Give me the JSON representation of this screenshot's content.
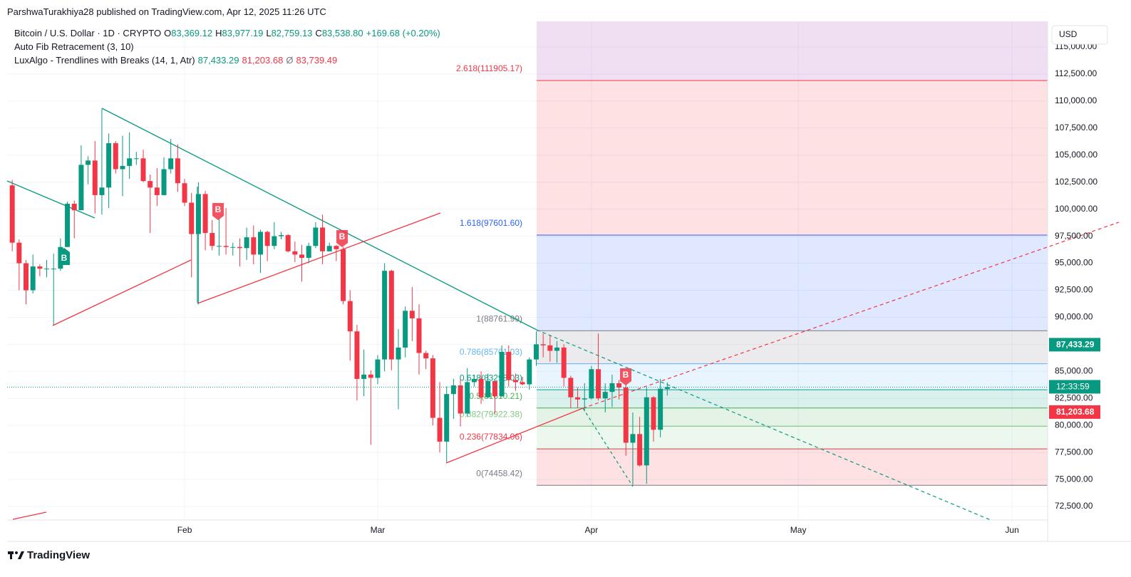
{
  "header": {
    "published": "ParshwaTurakhiya28 published on TradingView.com, Apr 12, 2025 11:26 UTC",
    "brand": "TradingView"
  },
  "legend": {
    "symbol": "Bitcoin / U.S. Dollar · 1D · CRYPTO",
    "ohlc": [
      {
        "key": "O",
        "value": "83,369.12"
      },
      {
        "key": "H",
        "value": "83,977.19"
      },
      {
        "key": "L",
        "value": "82,759.13"
      },
      {
        "key": "C",
        "value": "83,538.80"
      }
    ],
    "change": "+169.68 (+0.20%)"
  },
  "indicators": [
    {
      "name": "Auto Fib Retracement (3, 10)"
    },
    {
      "name": "LuxAlgo - Trendlines with Breaks (14, 1, Atr)",
      "values": [
        {
          "text": "87,433.29",
          "color": "#089981"
        },
        {
          "text": "81,203.68",
          "color": "#f23645"
        },
        {
          "text": "Ø",
          "color": "#787b86"
        },
        {
          "text": "83,739.49",
          "color": "#f23645"
        }
      ]
    }
  ],
  "breaks": [
    "B",
    "B",
    "B",
    "B"
  ],
  "currency": "USD",
  "chart_data": {
    "type": "candlestick",
    "up_color": "#089981",
    "down_color": "#f23645",
    "grid": true,
    "x": [
      7,
      8,
      9,
      10,
      11,
      12,
      13,
      14,
      15,
      16,
      17,
      18,
      19,
      20,
      21,
      22,
      23,
      24,
      25,
      26,
      27,
      28,
      29,
      30,
      31,
      32,
      33,
      34,
      35,
      36,
      37,
      38,
      39,
      40,
      41,
      42,
      43,
      44,
      45,
      46,
      47,
      48,
      49,
      50,
      51,
      52,
      53,
      54,
      55,
      56,
      57,
      58,
      59,
      60,
      61,
      62,
      63,
      64,
      65,
      66,
      67,
      68,
      69,
      70,
      71,
      72,
      73,
      74,
      75,
      76,
      77,
      78,
      79,
      80,
      81,
      82,
      83,
      84,
      85,
      86,
      87,
      88,
      89,
      90,
      91,
      92,
      93,
      94,
      95,
      96,
      97,
      98,
      99,
      100,
      101,
      102
    ],
    "open": [
      102200,
      96900,
      95000,
      92500,
      94700,
      94500,
      94500,
      94500,
      96500,
      100500,
      99900,
      104100,
      104500,
      101300,
      102000,
      106100,
      103700,
      104000,
      104700,
      104700,
      102600,
      102000,
      101300,
      103700,
      104700,
      102400,
      100600,
      97700,
      101400,
      97800,
      96600,
      96600,
      96500,
      96500,
      96400,
      97400,
      95800,
      97900,
      96600,
      97500,
      97600,
      96100,
      95800,
      95500,
      96600,
      98300,
      96100,
      96600,
      96300,
      91500,
      88700,
      84300,
      84700,
      84400,
      86100,
      94300,
      86100,
      87200,
      90600,
      89900,
      86700,
      86200,
      80700,
      78500,
      82900,
      83700,
      81100,
      84000,
      84300,
      82600,
      84100,
      82700,
      86800,
      84200,
      84000,
      83800,
      86100,
      87500,
      87400,
      86900,
      87200,
      84400,
      82600,
      82400,
      82500,
      85200,
      82500,
      83100,
      83900,
      83500,
      78400,
      79200,
      76300,
      82600,
      79600,
      83369.12
    ],
    "high": [
      102700,
      97200,
      95300,
      95800,
      94900,
      95300,
      95900,
      97300,
      100700,
      100800,
      105900,
      104900,
      106300,
      109300,
      107000,
      106300,
      106800,
      107100,
      105300,
      105500,
      103200,
      103800,
      104800,
      106500,
      106000,
      102800,
      101500,
      102500,
      101700,
      99000,
      99200,
      100100,
      96900,
      97300,
      98300,
      98500,
      98100,
      98000,
      98800,
      97900,
      97700,
      97000,
      96700,
      96900,
      98800,
      99500,
      96900,
      96700,
      96500,
      92500,
      89300,
      87000,
      85100,
      86500,
      95000,
      94400,
      88900,
      91000,
      92800,
      91200,
      86900,
      86500,
      84000,
      83600,
      84300,
      84300,
      85300,
      84700,
      85000,
      84800,
      84100,
      87400,
      87400,
      84800,
      84500,
      86300,
      88700,
      88500,
      88300,
      87800,
      87500,
      84600,
      83500,
      83900,
      85500,
      88500,
      83900,
      84700,
      84200,
      83800,
      81200,
      80800,
      83500,
      82700,
      84300,
      83977.19
    ],
    "low": [
      96100,
      92500,
      91200,
      92200,
      93800,
      93700,
      89300,
      94300,
      96500,
      97300,
      99900,
      102300,
      99600,
      99500,
      100100,
      103300,
      101200,
      102800,
      104100,
      102500,
      97800,
      100300,
      101300,
      103300,
      101600,
      100300,
      93700,
      91200,
      96200,
      96200,
      95700,
      95800,
      95700,
      94700,
      95300,
      94900,
      94100,
      95200,
      96300,
      97200,
      96000,
      95100,
      93300,
      95000,
      96400,
      94900,
      96100,
      95200,
      91200,
      86000,
      82300,
      82700,
      78200,
      83800,
      85000,
      85100,
      81500,
      86300,
      87800,
      84700,
      85200,
      80000,
      77500,
      76600,
      80600,
      79900,
      80800,
      83600,
      82000,
      82500,
      81100,
      82600,
      83600,
      83200,
      83700,
      83300,
      85500,
      86300,
      85900,
      85800,
      83600,
      81600,
      81600,
      81300,
      82400,
      82300,
      81200,
      81700,
      82400,
      77200,
      74500,
      76200,
      74600,
      78500,
      78900,
      82759.13
    ],
    "close": [
      96900,
      95000,
      92500,
      94700,
      94500,
      94500,
      94500,
      96500,
      100500,
      99900,
      104100,
      104500,
      101300,
      102000,
      106100,
      103700,
      104000,
      104700,
      104700,
      102600,
      102000,
      101300,
      103700,
      104700,
      102400,
      100600,
      97700,
      101400,
      97800,
      96600,
      96600,
      96500,
      96500,
      96400,
      97400,
      95800,
      97900,
      96600,
      97500,
      97600,
      96100,
      95800,
      95500,
      96600,
      98300,
      96100,
      96600,
      96300,
      91500,
      88700,
      84300,
      84700,
      84400,
      86100,
      94300,
      86100,
      87200,
      90600,
      89900,
      86700,
      86200,
      80700,
      78500,
      82900,
      83700,
      81100,
      84000,
      84300,
      82600,
      84100,
      82700,
      86800,
      84200,
      84000,
      83800,
      86100,
      87500,
      87400,
      86900,
      87200,
      84400,
      82600,
      82400,
      82500,
      85200,
      82500,
      83100,
      83900,
      83500,
      78400,
      79200,
      76300,
      82600,
      79600,
      83400,
      83538.8
    ],
    "xlim": [
      6.26,
      157.16
    ],
    "xticks": [
      {
        "value": 32,
        "label": "Feb"
      },
      {
        "value": 60,
        "label": "Mar"
      },
      {
        "value": 91,
        "label": "Apr"
      },
      {
        "value": 121,
        "label": "May"
      },
      {
        "value": 152,
        "label": "Jun"
      }
    ],
    "ylim": [
      71250,
      117370
    ],
    "yticks": [
      {
        "value": 72500,
        "label": "72,500.00"
      },
      {
        "value": 75000,
        "label": "75,000.00"
      },
      {
        "value": 77500,
        "label": "77,500.00"
      },
      {
        "value": 80000,
        "label": "80,000.00"
      },
      {
        "value": 82500,
        "label": "82,500.00"
      },
      {
        "value": 85000,
        "label": "85,000.00"
      },
      {
        "value": 87500,
        "label": "87,500.00"
      },
      {
        "value": 90000,
        "label": "90,000.00"
      },
      {
        "value": 92500,
        "label": "92,500.00"
      },
      {
        "value": 95000,
        "label": "95,000.00"
      },
      {
        "value": 97500,
        "label": "97,500.00"
      },
      {
        "value": 100000,
        "label": "100,000.00"
      },
      {
        "value": 102500,
        "label": "102,500.00"
      },
      {
        "value": 105000,
        "label": "105,000.00"
      },
      {
        "value": 107500,
        "label": "107,500.00"
      },
      {
        "value": 110000,
        "label": "110,000.00"
      },
      {
        "value": 112500,
        "label": "112,500.00"
      },
      {
        "value": 115000,
        "label": "115,000.00"
      }
    ],
    "fib_levels": [
      {
        "value": 74458.42,
        "label": "0(74458.42)",
        "color": "#787b86"
      },
      {
        "value": 77834.06,
        "label": "0.236(77834.06)",
        "color": "#f23645"
      },
      {
        "value": 79922.38,
        "label": "0.382(79922.38)",
        "color": "#81c784"
      },
      {
        "value": 81610.21,
        "label": "0.5(81610.21)",
        "color": "#4caf50"
      },
      {
        "value": 83298.03,
        "label": "0.618(83298.03)",
        "color": "#089981"
      },
      {
        "value": 85701.03,
        "label": "0.786(85701.03)",
        "color": "#64b5f6"
      },
      {
        "value": 88761.99,
        "label": "1(88761.99)",
        "color": "#787b86"
      },
      {
        "value": 97601.6,
        "label": "1.618(97601.60)",
        "color": "#2962ff"
      },
      {
        "value": 111905.17,
        "label": "2.618(111905.17)",
        "color": "#f23645"
      }
    ],
    "axis_labels": [
      {
        "value": 87433.29,
        "label": "87,433.29",
        "color": "#089981"
      },
      {
        "value": 81203.68,
        "label": "81,203.68",
        "color": "#f23645"
      }
    ],
    "countdown": "12:33:59",
    "price_line_color": "#089981"
  }
}
